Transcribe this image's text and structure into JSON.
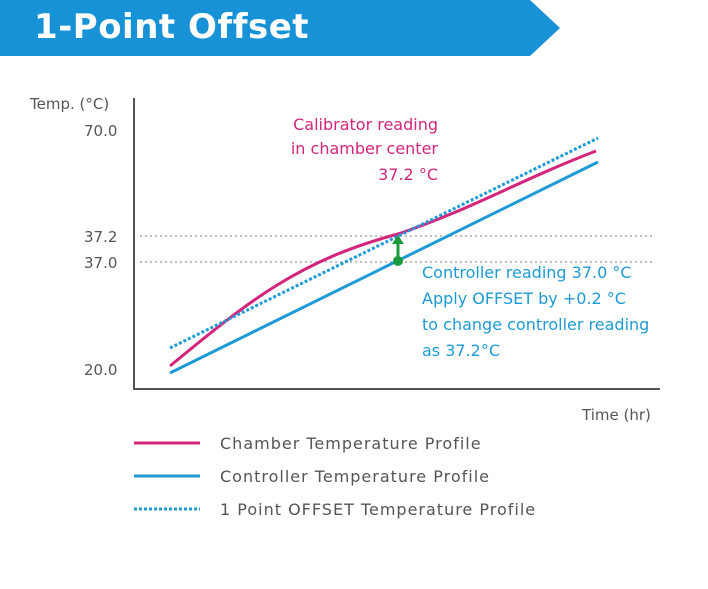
{
  "title": "1-Point Offset",
  "colors": {
    "banner": "#1792d6",
    "chamber": "#d4257c",
    "controller": "#1e9ad6",
    "offset": "#1e9ad6",
    "marker": "#1a9a3c",
    "axis": "#555555",
    "text": "#555555",
    "grid": "#999999"
  },
  "chart_data": {
    "type": "line",
    "xlabel": "Time (hr)",
    "ylabel": "Temp. (°C)",
    "y_ticks": [
      "70.0",
      "37.2",
      "37.0",
      "20.0"
    ],
    "ylim": [
      20.0,
      70.0
    ],
    "series": [
      {
        "name": "Chamber Temperature Profile",
        "style": "solid",
        "color": "#d4257c",
        "y_start": 20.3,
        "y_end": 68.1
      },
      {
        "name": "Controller Temperature Profile",
        "style": "solid",
        "color": "#1e9ad6",
        "y_start": 20.0,
        "y_end": 67.5
      },
      {
        "name": "1 Point OFFSET Temperature Profile",
        "style": "dotted",
        "color": "#1e9ad6",
        "y_start": 21.2,
        "y_end": 68.6
      }
    ],
    "annotations": {
      "calibrator": [
        "Calibrator reading",
        "in chamber center",
        "37.2 °C"
      ],
      "controller": [
        "Controller reading 37.0 °C",
        "Apply OFFSET by +0.2 °C",
        "to change controller reading",
        "as 37.2°C"
      ]
    }
  }
}
